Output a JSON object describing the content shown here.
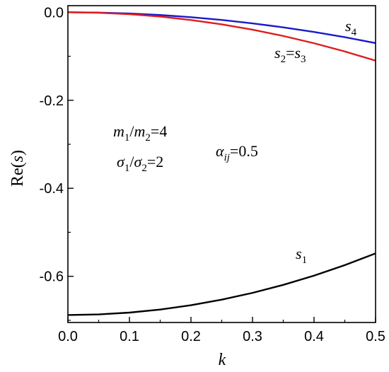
{
  "chart_data": {
    "type": "line",
    "xlabel": "k",
    "ylabel": "Re(s)",
    "xlim": [
      0.0,
      0.5
    ],
    "ylim": [
      -0.705,
      0.015
    ],
    "xticks": [
      "0.0",
      "0.1",
      "0.2",
      "0.3",
      "0.4",
      "0.5"
    ],
    "yticks": [
      "0.0",
      "-0.2",
      "-0.4",
      "-0.6"
    ],
    "grid": false,
    "series": [
      {
        "name": "s4",
        "color": "#1a1acc",
        "x": [
          0.0,
          0.05,
          0.1,
          0.15,
          0.2,
          0.25,
          0.3,
          0.35,
          0.4,
          0.45,
          0.5
        ],
        "y": [
          0.0,
          -0.0007,
          -0.0028,
          -0.0063,
          -0.0112,
          -0.0175,
          -0.0252,
          -0.0343,
          -0.0448,
          -0.0567,
          -0.07
        ]
      },
      {
        "name": "s2=s3",
        "color": "#e01b1b",
        "x": [
          0.0,
          0.05,
          0.1,
          0.15,
          0.2,
          0.25,
          0.3,
          0.35,
          0.4,
          0.45,
          0.5
        ],
        "y": [
          0.0,
          -0.0011,
          -0.0044,
          -0.0099,
          -0.0176,
          -0.0275,
          -0.0396,
          -0.0539,
          -0.0704,
          -0.0891,
          -0.11
        ]
      },
      {
        "name": "s1",
        "color": "#000000",
        "x": [
          0.0,
          0.05,
          0.1,
          0.15,
          0.2,
          0.25,
          0.3,
          0.35,
          0.4,
          0.45,
          0.5
        ],
        "y": [
          -0.688,
          -0.6866,
          -0.6825,
          -0.6755,
          -0.6657,
          -0.6531,
          -0.6377,
          -0.6195,
          -0.5985,
          -0.5747,
          -0.548
        ]
      }
    ]
  }
}
